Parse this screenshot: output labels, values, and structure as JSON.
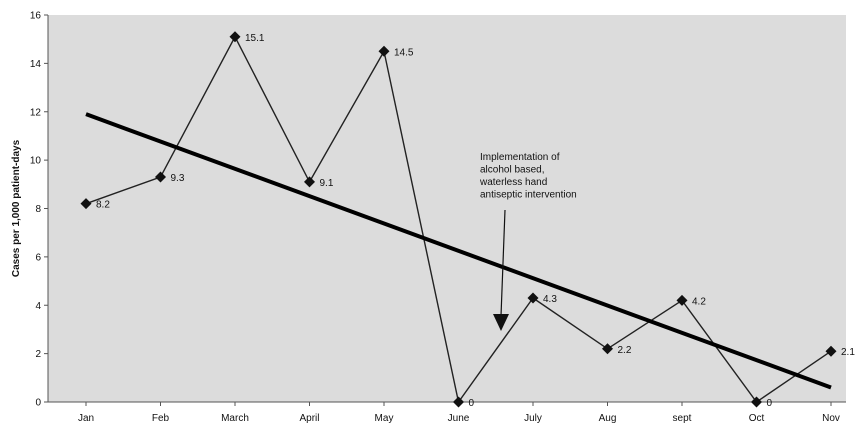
{
  "chart_data": {
    "type": "line",
    "categories": [
      "Jan",
      "Feb",
      "March",
      "April",
      "May",
      "June",
      "July",
      "Aug",
      "sept",
      "Oct",
      "Nov"
    ],
    "series": [
      {
        "values": [
          8.2,
          9.3,
          15.1,
          9.1,
          14.5,
          0,
          4.3,
          2.2,
          4.2,
          0,
          2.1
        ]
      }
    ],
    "data_labels": [
      "8.2",
      "9.3",
      "15.1",
      "9.1",
      "14.5",
      "0",
      "4.3",
      "2.2",
      "4.2",
      "0",
      "2.1"
    ],
    "trendline": {
      "start": 11.9,
      "end": 0.6
    },
    "ylabel": "Cases per 1,000 patient-days",
    "xlabel": "",
    "ylim": [
      0,
      16
    ],
    "yticks": [
      0,
      2,
      4,
      6,
      8,
      10,
      12,
      14,
      16
    ],
    "grid": false,
    "annotation": {
      "lines": [
        "Implementation of",
        "alcohol based,",
        "waterless hand",
        "antiseptic intervention"
      ]
    },
    "colors": {
      "plot_background": "#dcdcdc",
      "line": "#222222",
      "trend": "#000000",
      "marker": "#111111"
    }
  }
}
